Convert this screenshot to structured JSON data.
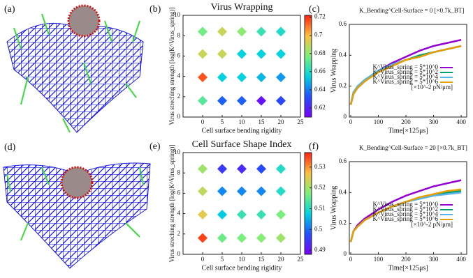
{
  "images": [
    {
      "panel_label": "(a)"
    },
    {
      "panel_label": "(d)"
    }
  ],
  "chart_data": [
    {
      "type": "scatter",
      "panel_label": "(b)",
      "title": "Virus Wrapping",
      "x_label": "Cell surface bending rigidity",
      "y_label": "Virus streching strength [log(K^Virus_spring)]",
      "xlim": [
        -5,
        25
      ],
      "ylim": [
        0,
        10
      ],
      "xticks": [
        0,
        5,
        10,
        15,
        20,
        25
      ],
      "yticks": [
        0,
        2,
        4,
        6,
        8,
        10
      ],
      "colormap": "rainbow",
      "clim": [
        0.61,
        0.722
      ],
      "cticks": [
        0.62,
        0.64,
        0.66,
        0.68,
        0.7,
        0.72
      ],
      "x": [
        0,
        5,
        10,
        15,
        20,
        0,
        5,
        10,
        15,
        20,
        0,
        5,
        10,
        15,
        20,
        0,
        5,
        10,
        15,
        20
      ],
      "y": [
        8.4,
        8.4,
        8.4,
        8.4,
        8.4,
        6.2,
        6.2,
        6.2,
        6.2,
        6.2,
        3.9,
        3.9,
        3.9,
        3.9,
        3.9,
        1.6,
        1.6,
        1.6,
        1.6,
        1.6
      ],
      "values": [
        0.675,
        0.69,
        0.68,
        0.665,
        0.66,
        0.69,
        0.69,
        0.655,
        0.655,
        0.655,
        0.715,
        0.655,
        0.655,
        0.65,
        0.645,
        0.67,
        0.635,
        0.635,
        0.615,
        0.63
      ]
    },
    {
      "type": "line",
      "panel_label": "(c)",
      "title": "K_Bending^Cell-Surface = 0  [×0.7k_BT]",
      "x_label": "Time[×125μs]",
      "y_label": "Virus Wrapping",
      "xlim": [
        -5,
        420
      ],
      "ylim": [
        0,
        0.6
      ],
      "xticks": [
        0,
        100,
        200,
        300,
        400
      ],
      "yticks": [
        0,
        0.2,
        0.4,
        0.6
      ],
      "legend": "right",
      "legend_note": "[×10^-2 pN/μm]",
      "x": [
        0,
        10,
        25,
        50,
        100,
        150,
        200,
        250,
        300,
        350,
        400
      ],
      "series": [
        {
          "name": "K^Virus_spring = 5*10^0",
          "color": "#9400d3",
          "values": [
            0.08,
            0.15,
            0.19,
            0.23,
            0.3,
            0.35,
            0.39,
            0.43,
            0.46,
            0.48,
            0.5
          ]
        },
        {
          "name": "K^Virus_spring = 5*10^2",
          "color": "#009e73",
          "values": [
            0.08,
            0.16,
            0.2,
            0.24,
            0.3,
            0.34,
            0.37,
            0.4,
            0.42,
            0.44,
            0.46
          ]
        },
        {
          "name": "K^Virus_spring = 5*10^4",
          "color": "#56b4e9",
          "values": [
            0.08,
            0.16,
            0.2,
            0.24,
            0.3,
            0.34,
            0.37,
            0.39,
            0.42,
            0.44,
            0.46
          ]
        },
        {
          "name": "K^Virus_spring = 5*10^6",
          "color": "#e69f00",
          "values": [
            0.08,
            0.15,
            0.19,
            0.23,
            0.29,
            0.33,
            0.37,
            0.39,
            0.42,
            0.44,
            0.46
          ]
        }
      ]
    },
    {
      "type": "scatter",
      "panel_label": "(e)",
      "title": "Cell Surface Shape Index",
      "x_label": "Cell surface bending rigidity",
      "y_label": "Virus streching strength [log(K^Virus_spring)]",
      "xlim": [
        -5,
        25
      ],
      "ylim": [
        0,
        10
      ],
      "xticks": [
        0,
        5,
        10,
        15,
        20,
        25
      ],
      "yticks": [
        0,
        2,
        4,
        6,
        8,
        10
      ],
      "colormap": "rainbow",
      "clim": [
        0.488,
        0.537
      ],
      "cticks": [
        0.49,
        0.5,
        0.51,
        0.52,
        0.53
      ],
      "x": [
        0,
        5,
        10,
        15,
        20,
        0,
        5,
        10,
        15,
        20,
        0,
        5,
        10,
        15,
        20,
        0,
        5,
        10,
        15,
        20
      ],
      "y": [
        8.4,
        8.4,
        8.4,
        8.4,
        8.4,
        6.2,
        6.2,
        6.2,
        6.2,
        6.2,
        3.9,
        3.9,
        3.9,
        3.9,
        3.9,
        1.6,
        1.6,
        1.6,
        1.6,
        1.6
      ],
      "values": [
        0.52,
        0.495,
        0.493,
        0.497,
        0.51,
        0.522,
        0.502,
        0.502,
        0.502,
        0.51,
        0.525,
        0.507,
        0.512,
        0.512,
        0.517,
        0.535,
        0.516,
        0.517,
        0.518,
        0.52
      ]
    },
    {
      "type": "line",
      "panel_label": "(f)",
      "title": "K_Bending^Cell-Surface = 20  [×0.7k_BT]",
      "x_label": "Time[×125μs]",
      "y_label": "Virus Wrapping",
      "xlim": [
        -5,
        420
      ],
      "ylim": [
        0,
        0.6
      ],
      "xticks": [
        0,
        100,
        200,
        300,
        400
      ],
      "yticks": [
        0,
        0.2,
        0.4,
        0.6
      ],
      "legend": "right",
      "legend_note": "[×10^-2 pN/μm]",
      "x": [
        0,
        10,
        25,
        50,
        100,
        150,
        200,
        250,
        300,
        350,
        400
      ],
      "series": [
        {
          "name": "K^Virus_spring = 5*10^0",
          "color": "#9400d3",
          "values": [
            0.08,
            0.15,
            0.19,
            0.23,
            0.29,
            0.34,
            0.38,
            0.41,
            0.44,
            0.46,
            0.48
          ]
        },
        {
          "name": "K^Virus_spring = 5*10^2",
          "color": "#009e73",
          "values": [
            0.08,
            0.15,
            0.18,
            0.22,
            0.27,
            0.31,
            0.34,
            0.36,
            0.38,
            0.4,
            0.41
          ]
        },
        {
          "name": "K^Virus_spring = 5*10^4",
          "color": "#56b4e9",
          "values": [
            0.08,
            0.15,
            0.18,
            0.22,
            0.27,
            0.31,
            0.34,
            0.36,
            0.38,
            0.39,
            0.4
          ]
        },
        {
          "name": "K^Virus_spring = 5*10^6",
          "color": "#e69f00",
          "values": [
            0.08,
            0.15,
            0.18,
            0.22,
            0.27,
            0.31,
            0.34,
            0.37,
            0.39,
            0.41,
            0.42
          ]
        }
      ]
    }
  ]
}
